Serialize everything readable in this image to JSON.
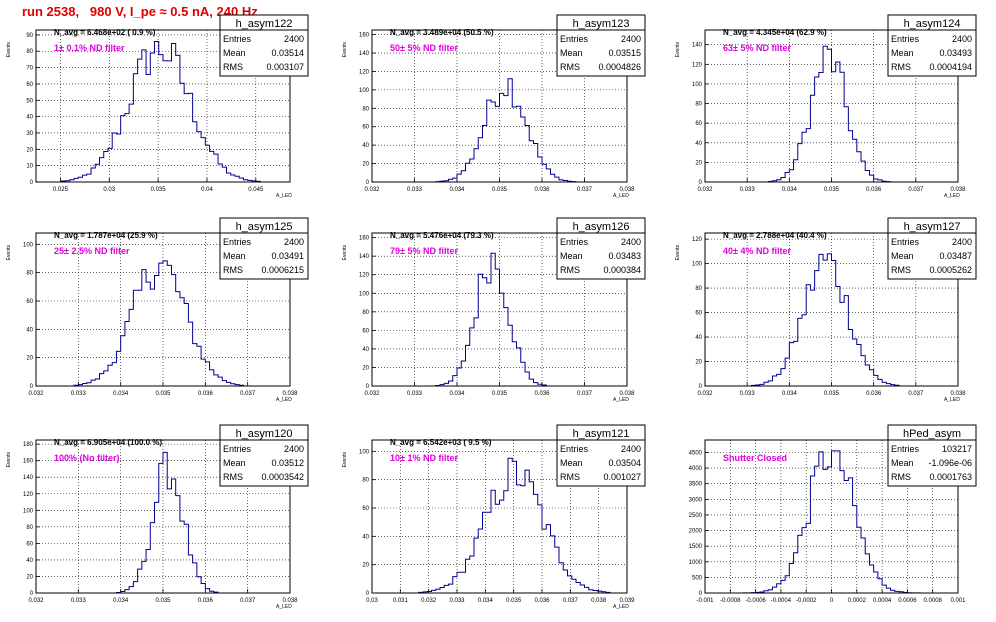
{
  "page_title": "run 2538,   980 V, I_pe ≈ 0.5 nA, 240 Hz",
  "colors": {
    "title": "#e00000",
    "annotation": "#e000e0",
    "histogram": "#000090",
    "grid": "#000000"
  },
  "chart_data": [
    {
      "type": "histogram",
      "name": "h_asym122",
      "header": "N_avg = 6.468e+02 ( 0.9 %)",
      "annotation": "1± 0.1% ND filter",
      "stats": [
        [
          "Entries",
          "2400"
        ],
        [
          "Mean",
          "0.03514"
        ],
        [
          "RMS",
          "0.003107"
        ]
      ],
      "ylabel": "Events",
      "xlabel": "A_LED",
      "xlim": [
        0.0225,
        0.0485
      ],
      "ylim": [
        0,
        93
      ],
      "xticks": [
        0.025,
        0.03,
        0.035,
        0.04,
        0.045
      ],
      "xticklabels": [
        "0.025",
        "0.03",
        "0.035",
        "0.04",
        "0.045"
      ],
      "yticks": [
        0,
        10,
        20,
        30,
        40,
        50,
        60,
        70,
        80,
        90
      ],
      "mean": 0.03514,
      "rms": 0.003107,
      "peak": 86,
      "amp": 82
    },
    {
      "type": "histogram",
      "name": "h_asym123",
      "header": "N_avg = 3.489e+04 (50.5 %)",
      "annotation": "50± 5% ND filter",
      "stats": [
        [
          "Entries",
          "2400"
        ],
        [
          "Mean",
          "0.03515"
        ],
        [
          "RMS",
          "0.0004826"
        ]
      ],
      "ylabel": "Events",
      "xlabel": "A_LED",
      "xlim": [
        0.032,
        0.038
      ],
      "ylim": [
        0,
        165
      ],
      "xticks": [
        0.032,
        0.033,
        0.034,
        0.035,
        0.036,
        0.037,
        0.038
      ],
      "xticklabels": [
        "0.032",
        "0.033",
        "0.034",
        "0.035",
        "0.036",
        "0.037",
        "0.038"
      ],
      "yticks": [
        0,
        20,
        40,
        60,
        80,
        100,
        120,
        140,
        160
      ],
      "mean": 0.03515,
      "rms": 0.0004826,
      "peak": 125,
      "amp": 108
    },
    {
      "type": "histogram",
      "name": "h_asym124",
      "header": "N_avg = 4.345e+04 (62.9 %)",
      "annotation": "63± 5% ND filter",
      "stats": [
        [
          "Entries",
          "2400"
        ],
        [
          "Mean",
          "0.03493"
        ],
        [
          "RMS",
          "0.0004194"
        ]
      ],
      "ylabel": "Events",
      "xlabel": "A_LED",
      "xlim": [
        0.032,
        0.038
      ],
      "ylim": [
        0,
        155
      ],
      "xticks": [
        0.032,
        0.033,
        0.034,
        0.035,
        0.036,
        0.037,
        0.038
      ],
      "xticklabels": [
        "0.032",
        "0.033",
        "0.034",
        "0.035",
        "0.036",
        "0.037",
        "0.038"
      ],
      "yticks": [
        0,
        20,
        40,
        60,
        80,
        100,
        120,
        140
      ],
      "mean": 0.03493,
      "rms": 0.0004194,
      "peak": 143,
      "amp": 127
    },
    {
      "type": "histogram",
      "name": "h_asym125",
      "header": "N_avg = 1.787e+04 (25.9 %)",
      "annotation": "25± 2.5% ND filter",
      "stats": [
        [
          "Entries",
          "2400"
        ],
        [
          "Mean",
          "0.03491"
        ],
        [
          "RMS",
          "0.0006215"
        ]
      ],
      "ylabel": "Events",
      "xlabel": "A_LED",
      "xlim": [
        0.032,
        0.038
      ],
      "ylim": [
        0,
        108
      ],
      "xticks": [
        0.032,
        0.033,
        0.034,
        0.035,
        0.036,
        0.037,
        0.038
      ],
      "xticklabels": [
        "0.032",
        "0.033",
        "0.034",
        "0.035",
        "0.036",
        "0.037",
        "0.038"
      ],
      "yticks": [
        0,
        20,
        40,
        60,
        80,
        100
      ],
      "mean": 0.03491,
      "rms": 0.0006215,
      "peak": 102,
      "amp": 86
    },
    {
      "type": "histogram",
      "name": "h_asym126",
      "header": "N_avg = 5.476e+04 (79.3 %)",
      "annotation": "79± 5% ND filter",
      "stats": [
        [
          "Entries",
          "2400"
        ],
        [
          "Mean",
          "0.03483"
        ],
        [
          "RMS",
          "0.000384"
        ]
      ],
      "ylabel": "Events",
      "xlabel": "A_LED",
      "xlim": [
        0.032,
        0.038
      ],
      "ylim": [
        0,
        165
      ],
      "xticks": [
        0.032,
        0.033,
        0.034,
        0.035,
        0.036,
        0.037,
        0.038
      ],
      "xticklabels": [
        "0.032",
        "0.033",
        "0.034",
        "0.035",
        "0.036",
        "0.037",
        "0.038"
      ],
      "yticks": [
        0,
        20,
        40,
        60,
        80,
        100,
        120,
        140,
        160
      ],
      "mean": 0.03483,
      "rms": 0.000384,
      "peak": 155,
      "amp": 138
    },
    {
      "type": "histogram",
      "name": "h_asym127",
      "header": "N_avg = 2.788e+04 (40.4 %)",
      "annotation": "40± 4% ND filter",
      "stats": [
        [
          "Entries",
          "2400"
        ],
        [
          "Mean",
          "0.03487"
        ],
        [
          "RMS",
          "0.0005262"
        ]
      ],
      "ylabel": "Events",
      "xlabel": "A_LED",
      "xlim": [
        0.032,
        0.038
      ],
      "ylim": [
        0,
        125
      ],
      "xticks": [
        0.032,
        0.033,
        0.034,
        0.035,
        0.036,
        0.037,
        0.038
      ],
      "xticklabels": [
        "0.032",
        "0.033",
        "0.034",
        "0.035",
        "0.036",
        "0.037",
        "0.038"
      ],
      "yticks": [
        0,
        20,
        40,
        60,
        80,
        100,
        120
      ],
      "mean": 0.03487,
      "rms": 0.0005262,
      "peak": 120,
      "amp": 102
    },
    {
      "type": "histogram",
      "name": "h_asym120",
      "header": "N_avg = 6.905e+04 (100.0 %)",
      "annotation": "100% (No filter)",
      "stats": [
        [
          "Entries",
          "2400"
        ],
        [
          "Mean",
          "0.03512"
        ],
        [
          "RMS",
          "0.0003542"
        ]
      ],
      "ylabel": "Events",
      "xlabel": "A_LED",
      "xlim": [
        0.032,
        0.038
      ],
      "ylim": [
        0,
        185
      ],
      "xticks": [
        0.032,
        0.033,
        0.034,
        0.035,
        0.036,
        0.037,
        0.038
      ],
      "xticklabels": [
        "0.032",
        "0.033",
        "0.034",
        "0.035",
        "0.036",
        "0.037",
        "0.038"
      ],
      "yticks": [
        0,
        20,
        40,
        60,
        80,
        100,
        120,
        140,
        160,
        180
      ],
      "mean": 0.03512,
      "rms": 0.0003542,
      "peak": 170,
      "amp": 152
    },
    {
      "type": "histogram",
      "name": "h_asym121",
      "header": "N_avg = 6.542e+03 ( 9.5 %)",
      "annotation": "10± 1% ND filter",
      "stats": [
        [
          "Entries",
          "2400"
        ],
        [
          "Mean",
          "0.03504"
        ],
        [
          "RMS",
          "0.001027"
        ]
      ],
      "ylabel": "Events",
      "xlabel": "A_LED",
      "xlim": [
        0.03,
        0.039
      ],
      "ylim": [
        0,
        108
      ],
      "xticks": [
        0.03,
        0.031,
        0.032,
        0.033,
        0.034,
        0.035,
        0.036,
        0.037,
        0.038,
        0.039
      ],
      "xticklabels": [
        "0.03",
        "0.031",
        "0.032",
        "0.033",
        "0.034",
        "0.035",
        "0.036",
        "0.037",
        "0.038",
        "0.039"
      ],
      "yticks": [
        0,
        20,
        40,
        60,
        80,
        100
      ],
      "mean": 0.03504,
      "rms": 0.001027,
      "peak": 100,
      "amp": 84
    },
    {
      "type": "histogram",
      "name": "hPed_asym",
      "header": "",
      "annotation": "Shutter Closed",
      "stats": [
        [
          "Entries",
          "103217"
        ],
        [
          "Mean",
          "-1.096e-06"
        ],
        [
          "RMS",
          "0.0001763"
        ]
      ],
      "ylabel": "",
      "xlabel": "",
      "xlim": [
        -0.001,
        0.001
      ],
      "ylim": [
        0,
        4900
      ],
      "xticks": [
        -0.001,
        -0.0008,
        -0.0006,
        -0.0004,
        -0.0002,
        0,
        0.0002,
        0.0004,
        0.0006,
        0.0008,
        0.001
      ],
      "xticklabels": [
        "-0.001",
        "-0.0008",
        "-0.0006",
        "-0.0004",
        "-0.0002",
        "0",
        "0.0002",
        "0.0004",
        "0.0006",
        "0.0008",
        "0.001"
      ],
      "yticks": [
        0,
        500,
        1000,
        1500,
        2000,
        2500,
        3000,
        3500,
        4000,
        4500
      ],
      "mean": -1.096e-06,
      "rms": 0.0001763,
      "peak": 4550,
      "amp": 4550
    }
  ]
}
